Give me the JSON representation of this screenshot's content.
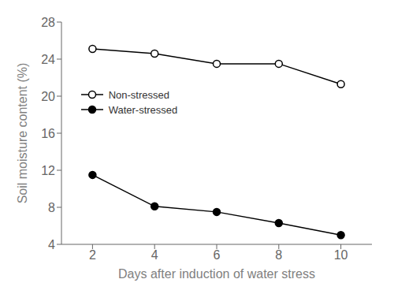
{
  "chart_data": {
    "type": "line",
    "x": [
      2,
      4,
      6,
      8,
      10
    ],
    "series": [
      {
        "name": "Non-stressed",
        "color": "#000000",
        "marker": "open",
        "values": [
          25.1,
          24.6,
          23.5,
          23.5,
          21.3
        ]
      },
      {
        "name": "Water-stressed",
        "color": "#000000",
        "marker": "filled",
        "values": [
          11.5,
          8.1,
          7.5,
          6.3,
          5.0
        ]
      }
    ],
    "xlabel": "Days after induction of water stress",
    "ylabel": "Soil moisture content (%)",
    "xlim": [
      1,
      11
    ],
    "xticks": [
      2,
      4,
      6,
      8,
      10
    ],
    "ylim": [
      4,
      28
    ],
    "yticks": [
      4,
      8,
      12,
      16,
      20,
      24,
      28
    ],
    "grid": false,
    "legend": "upper left"
  }
}
